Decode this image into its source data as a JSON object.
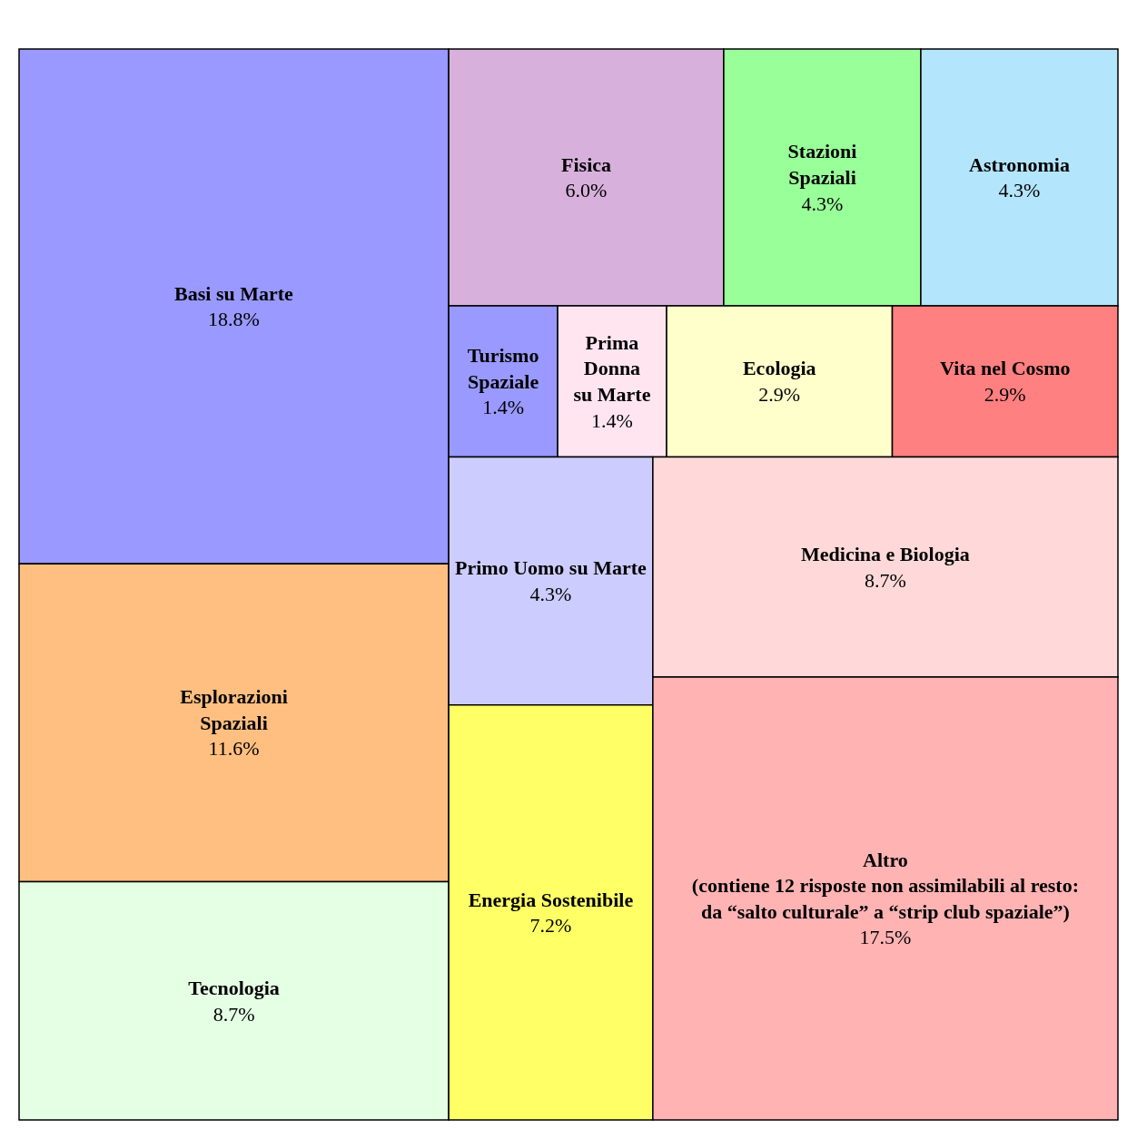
{
  "chart_data": {
    "type": "other",
    "categories": [
      "Basi su Marte",
      "Esplorazioni\nSpaziali",
      "Tecnologia",
      "Fisica",
      "Stazioni\nSpaziali",
      "Astronomia",
      "Turismo\nSpaziale",
      "Prima\nDonna\nsu Marte",
      "Ecologia",
      "Vita nel Cosmo",
      "Primo Uomo su Marte",
      "Energia Sostenibile",
      "Medicina e Biologia",
      "Altro\n(contiene 12 risposte non assimilabili al resto:\nda “salto culturale” a “strip club spaziale”)"
    ],
    "values": [
      18.8,
      11.6,
      8.7,
      6.0,
      4.3,
      4.3,
      1.4,
      1.4,
      2.9,
      2.9,
      4.3,
      7.2,
      8.7,
      17.5
    ],
    "value_labels": [
      "18.8%",
      "11.6%",
      "8.7%",
      "6.0%",
      "4.3%",
      "4.3%",
      "1.4%",
      "1.4%",
      "2.9%",
      "2.9%",
      "4.3%",
      "7.2%",
      "8.7%",
      "17.5%"
    ],
    "colors": [
      "#9999ff",
      "#ffbf80",
      "#e5ffe5",
      "#d8b0dc",
      "#99ff99",
      "#b3e5fc",
      "#9999ff",
      "#ffe5f0",
      "#ffffcc",
      "#ff8080",
      "#ccccff",
      "#ffff66",
      "#ffd9d9",
      "#ffb3b3"
    ]
  }
}
